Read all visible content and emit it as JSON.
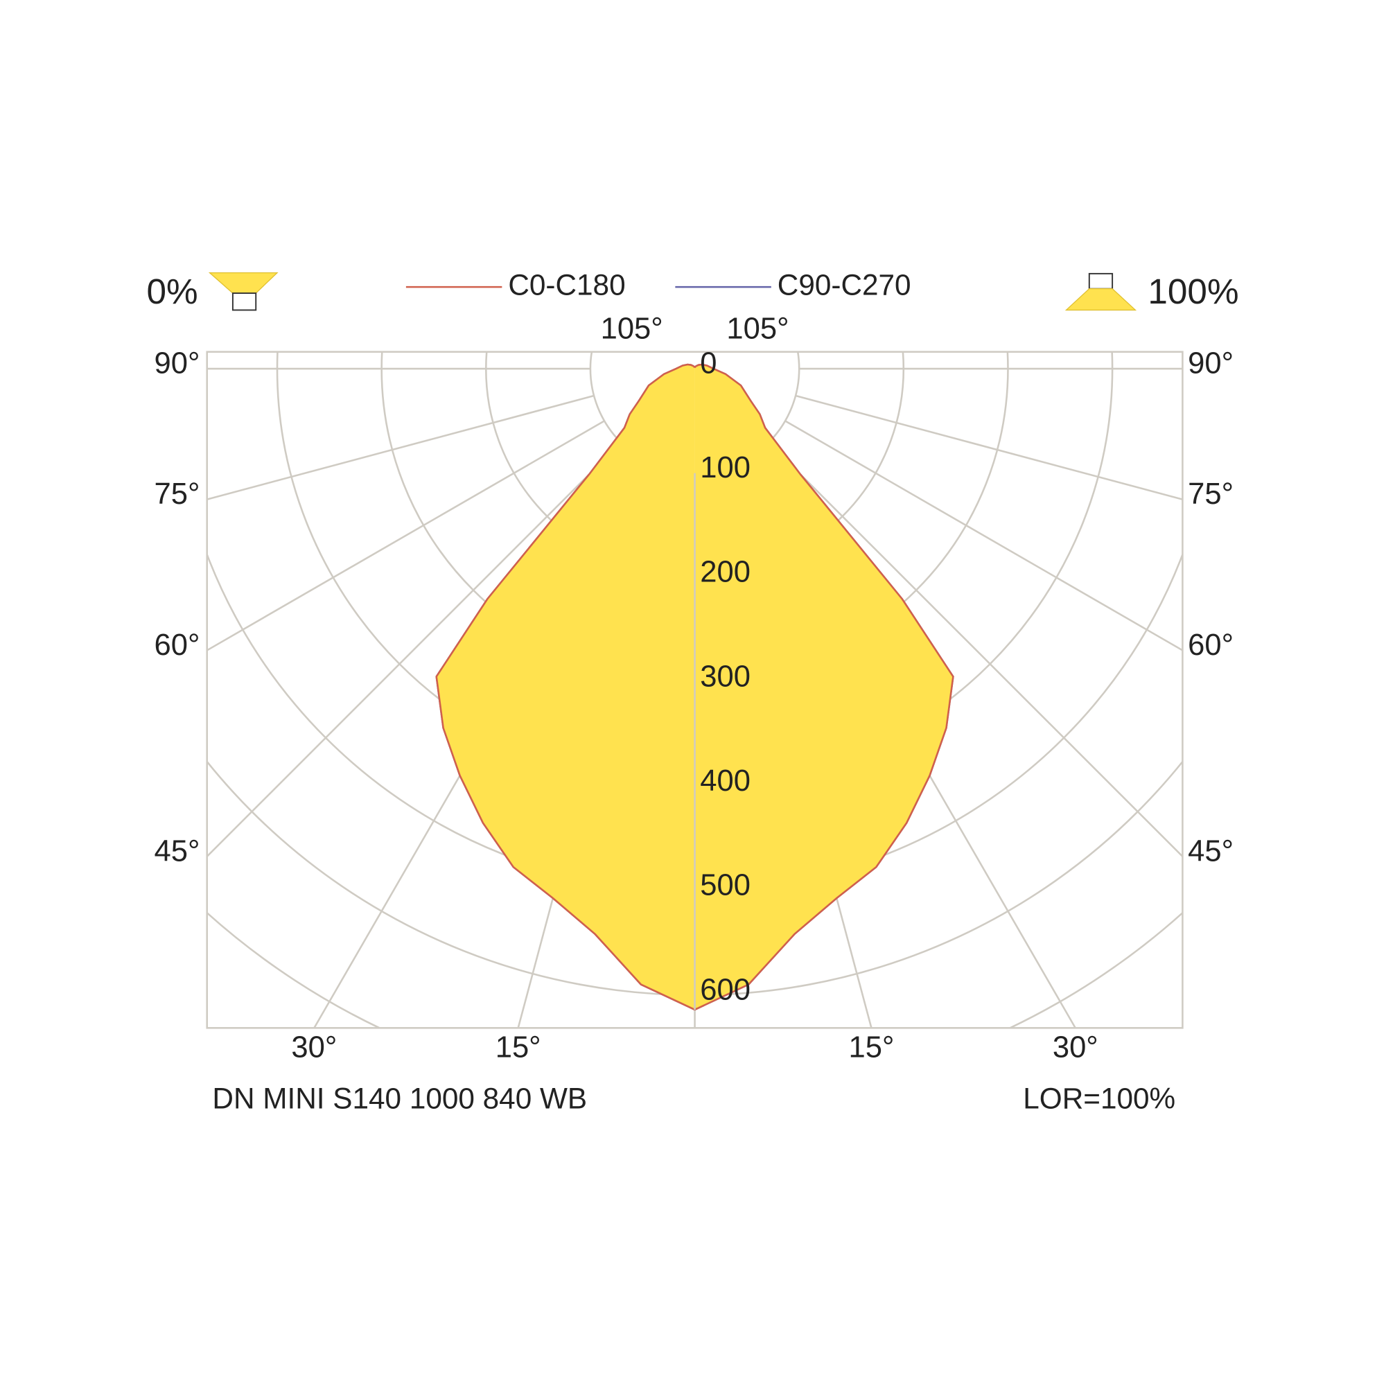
{
  "chart_data": {
    "type": "polar",
    "caption": "DN MINI S140 1000 840 WB",
    "lor": "LOR=100%",
    "upward_light": "0%",
    "downward_light": "100%",
    "fill_color": "#ffe24f",
    "series": [
      {
        "name": "C0-C180",
        "color": "#d0604c",
        "values": [
          614,
          592,
          550,
          525,
          508,
          480,
          450,
          420,
          385,
          297,
          173,
          143,
          88,
          76,
          62,
          47,
          30,
          18,
          12,
          8,
          5,
          3,
          2,
          1
        ]
      },
      {
        "name": "C90-C270",
        "color": "#6464a8",
        "values": [
          614,
          592,
          550,
          525,
          508,
          480,
          450,
          420,
          385,
          297,
          173,
          143,
          88,
          76,
          62,
          47,
          30,
          18,
          12,
          8,
          5,
          3,
          2,
          1
        ]
      }
    ],
    "angles": [
      0,
      5,
      10,
      15,
      20,
      25,
      30,
      35,
      40,
      42,
      44,
      45,
      50,
      55,
      60,
      70,
      80,
      90,
      105,
      120,
      135,
      150,
      165,
      180
    ],
    "rlim": [
      0,
      700
    ],
    "rticks": [
      0,
      100,
      200,
      300,
      400,
      500,
      600
    ],
    "rings": [
      100,
      200,
      300,
      400,
      500,
      600,
      700
    ],
    "angle_ticks": [
      {
        "value": 15,
        "label": "15°"
      },
      {
        "value": 30,
        "label": "30°"
      },
      {
        "value": 45,
        "label": "45°"
      },
      {
        "value": 60,
        "label": "60°"
      },
      {
        "value": 75,
        "label": "75°"
      },
      {
        "value": 90,
        "label": "90°"
      },
      {
        "value": 105,
        "label": "105°"
      }
    ]
  }
}
